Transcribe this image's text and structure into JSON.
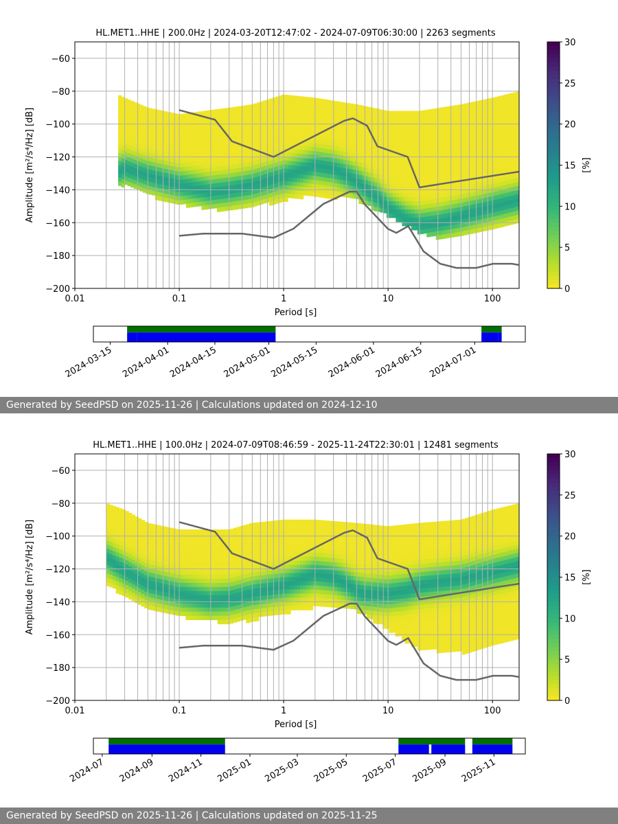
{
  "chart_data": [
    {
      "type": "heatmap",
      "title": "HL.MET1..HHE | 200.0Hz | 2024-03-20T12:47:02 - 2024-07-09T06:30:00 | 2263 segments",
      "xlabel": "Period [s]",
      "ylabel": "Amplitude [m²/s⁴/Hz] [dB]",
      "xscale": "log",
      "xlim": [
        0.01,
        180
      ],
      "ylim": [
        -200,
        -50
      ],
      "xticks": [
        "0.01",
        "0.1",
        "1",
        "10",
        "100"
      ],
      "yticks": [
        -60,
        -80,
        -100,
        -120,
        -140,
        -160,
        -180,
        -200
      ],
      "grid": true,
      "colorbar": {
        "label": "[%]",
        "min": 0,
        "max": 30,
        "ticks": [
          0,
          5,
          10,
          15,
          20,
          25,
          30
        ],
        "colormap": "viridis_r"
      },
      "psd_mode_curve": {
        "period": [
          0.026,
          0.03,
          0.05,
          0.1,
          0.2,
          0.3,
          0.5,
          1,
          2,
          3,
          4,
          5,
          6,
          8,
          10,
          15,
          20,
          30,
          50,
          100,
          180
        ],
        "db": [
          -128,
          -126,
          -130,
          -136,
          -140,
          -139,
          -136,
          -131,
          -124,
          -126,
          -130,
          -134,
          -138,
          -144,
          -150,
          -157,
          -160,
          -159,
          -155,
          -149,
          -145
        ]
      },
      "psd_upper_edge": {
        "period": [
          0.026,
          0.03,
          0.05,
          0.1,
          0.3,
          0.5,
          1,
          2,
          5,
          10,
          20,
          50,
          100,
          180
        ],
        "db": [
          -82,
          -84,
          -90,
          -94,
          -90,
          -88,
          -82,
          -84,
          -88,
          -92,
          -92,
          -88,
          -84,
          -80
        ]
      },
      "psd_lower_edge": {
        "period": [
          0.03,
          0.05,
          0.1,
          0.3,
          0.5,
          1,
          2,
          5,
          10,
          20,
          30,
          50,
          100,
          180
        ],
        "db": [
          -136,
          -142,
          -148,
          -152,
          -150,
          -145,
          -142,
          -145,
          -155,
          -165,
          -168,
          -168,
          -162,
          -158
        ]
      },
      "reference_curves": {
        "nhnm": {
          "period": [
            0.1,
            0.22,
            0.32,
            0.8,
            3.8,
            4.6,
            6.3,
            7.9,
            15.4,
            20,
            354.8
          ],
          "db": [
            -91.5,
            -97.4,
            -110.5,
            -120.0,
            -98.0,
            -96.5,
            -101.0,
            -113.5,
            -120.0,
            -138.5,
            -126.0
          ]
        },
        "nlnm": {
          "period": [
            0.1,
            0.17,
            0.4,
            0.8,
            1.24,
            2.4,
            4.3,
            5.0,
            6.0,
            10.0,
            12.0,
            15.6,
            21.9,
            31.6,
            45.0,
            70.0,
            101.0,
            154.0,
            178.0
          ],
          "db": [
            -168.0,
            -166.7,
            -166.7,
            -169.2,
            -163.7,
            -148.6,
            -141.1,
            -141.1,
            -149.0,
            -163.8,
            -166.2,
            -162.1,
            -177.5,
            -185.0,
            -187.5,
            -187.5,
            -185.0,
            -185.0,
            -185.7
          ]
        }
      },
      "timeline": {
        "xlim": [
          "2024-03-10",
          "2024-07-16"
        ],
        "xticks": [
          "2024-03-15",
          "2024-04-01",
          "2024-04-15",
          "2024-05-01",
          "2024-05-15",
          "2024-06-01",
          "2024-06-15",
          "2024-07-01"
        ],
        "data_coverage": [
          [
            "2024-03-20",
            "2024-05-03"
          ],
          [
            "2024-07-03",
            "2024-07-09"
          ]
        ],
        "processed_coverage": [
          [
            "2024-03-20",
            "2024-03-23"
          ],
          [
            "2024-03-23",
            "2024-05-03"
          ],
          [
            "2024-07-03",
            "2024-07-08"
          ],
          [
            "2024-07-08",
            "2024-07-09"
          ]
        ]
      },
      "footer": "Generated by SeedPSD on 2025-11-26 | Calculations updated on 2024-12-10"
    },
    {
      "type": "heatmap",
      "title": "HL.MET1..HHE | 100.0Hz | 2024-07-09T08:46:59 - 2025-11-24T22:30:01 | 12481 segments",
      "xlabel": "Period [s]",
      "ylabel": "Amplitude [m²/s⁴/Hz] [dB]",
      "xscale": "log",
      "xlim": [
        0.01,
        180
      ],
      "ylim": [
        -200,
        -50
      ],
      "xticks": [
        "0.01",
        "0.1",
        "1",
        "10",
        "100"
      ],
      "yticks": [
        -60,
        -80,
        -100,
        -120,
        -140,
        -160,
        -180,
        -200
      ],
      "grid": true,
      "colorbar": {
        "label": "[%]",
        "min": 0,
        "max": 30,
        "ticks": [
          0,
          5,
          10,
          15,
          20,
          25,
          30
        ],
        "colormap": "viridis_r"
      },
      "psd_mode_curve": {
        "period": [
          0.02,
          0.03,
          0.05,
          0.1,
          0.2,
          0.3,
          0.5,
          1,
          2,
          3,
          4,
          5,
          6,
          8,
          10,
          15,
          20,
          30,
          50,
          100,
          180
        ],
        "db": [
          -112,
          -120,
          -128,
          -134,
          -138,
          -137,
          -134,
          -129,
          -122,
          -124,
          -128,
          -132,
          -134,
          -134,
          -134,
          -132,
          -129,
          -127,
          -125,
          -121,
          -117
        ]
      },
      "psd_upper_edge": {
        "period": [
          0.02,
          0.03,
          0.05,
          0.1,
          0.3,
          0.5,
          1,
          2,
          5,
          10,
          20,
          50,
          100,
          180
        ],
        "db": [
          -80,
          -84,
          -92,
          -96,
          -96,
          -92,
          -90,
          -90,
          -92,
          -94,
          -92,
          -90,
          -84,
          -80
        ]
      },
      "psd_lower_edge": {
        "period": [
          0.02,
          0.03,
          0.05,
          0.1,
          0.3,
          0.5,
          1,
          2,
          5,
          10,
          20,
          50,
          100,
          180
        ],
        "db": [
          -128,
          -136,
          -142,
          -148,
          -152,
          -150,
          -146,
          -142,
          -144,
          -156,
          -168,
          -170,
          -166,
          -162
        ]
      },
      "reference_curves": {
        "nhnm": {
          "period": [
            0.1,
            0.22,
            0.32,
            0.8,
            3.8,
            4.6,
            6.3,
            7.9,
            15.4,
            20,
            354.8
          ],
          "db": [
            -91.5,
            -97.4,
            -110.5,
            -120.0,
            -98.0,
            -96.5,
            -101.0,
            -113.5,
            -120.0,
            -138.5,
            -126.0
          ]
        },
        "nlnm": {
          "period": [
            0.1,
            0.17,
            0.4,
            0.8,
            1.24,
            2.4,
            4.3,
            5.0,
            6.0,
            10.0,
            12.0,
            15.6,
            21.9,
            31.6,
            45.0,
            70.0,
            101.0,
            154.0,
            178.0
          ],
          "db": [
            -168.0,
            -166.7,
            -166.7,
            -169.2,
            -163.7,
            -148.6,
            -141.1,
            -141.1,
            -149.0,
            -163.8,
            -166.2,
            -162.1,
            -177.5,
            -185.0,
            -187.5,
            -187.5,
            -185.0,
            -185.0,
            -185.7
          ]
        }
      },
      "timeline": {
        "xlim": [
          "2024-06-20",
          "2025-12-10"
        ],
        "xticks": [
          "2024-07",
          "2024-09",
          "2024-11",
          "2025-01",
          "2025-03",
          "2025-05",
          "2025-07",
          "2025-09",
          "2025-11"
        ],
        "data_coverage": [
          [
            "2024-07-09",
            "2024-12-01"
          ],
          [
            "2025-07-05",
            "2025-09-26"
          ],
          [
            "2025-10-05",
            "2025-11-24"
          ]
        ],
        "processed_coverage": [
          [
            "2024-07-09",
            "2024-12-01"
          ],
          [
            "2025-07-05",
            "2025-08-12"
          ],
          [
            "2025-08-15",
            "2025-09-26"
          ],
          [
            "2025-10-05",
            "2025-11-24"
          ]
        ]
      },
      "footer": "Generated by SeedPSD on 2025-11-26 | Calculations updated on 2025-11-25"
    }
  ]
}
